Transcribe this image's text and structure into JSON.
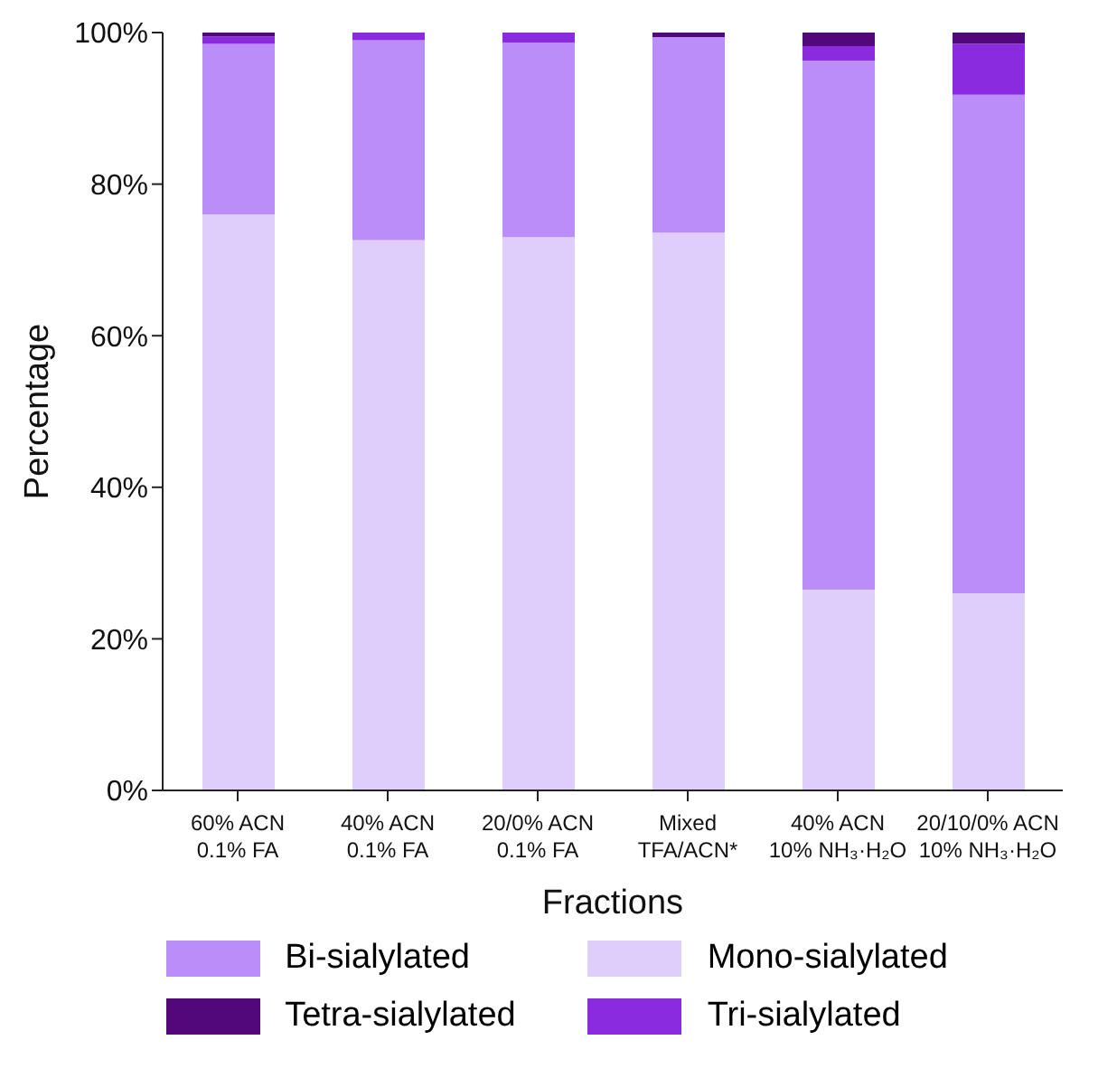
{
  "chart_data": {
    "type": "bar",
    "stacked": true,
    "xlabel": "Fractions",
    "ylabel": "Percentage",
    "categories": [
      "60% ACN\n0.1% FA",
      "40% ACN\n0.1% FA",
      "20/0% ACN\n0.1% FA",
      "Mixed\nTFA/ACN*",
      "40% ACN\n10% NH₃·H₂O",
      "20/10/0% ACN\n10% NH₃·H₂O"
    ],
    "series": [
      {
        "name": "Mono-sialylated",
        "color": "#dfcdfb",
        "values": [
          76,
          72.6,
          73,
          73.6,
          26.5,
          26
        ]
      },
      {
        "name": "Bi-sialylated",
        "color": "#bb8df9",
        "values": [
          22.5,
          26.4,
          25.7,
          25.8,
          69.8,
          65.8
        ]
      },
      {
        "name": "Tri-sialylated",
        "color": "#8a2be0",
        "values": [
          1,
          1,
          1.3,
          0,
          1.9,
          6.7
        ]
      },
      {
        "name": "Tetra-sialylated",
        "color": "#52087a",
        "values": [
          0.5,
          0,
          0,
          0.6,
          1.8,
          1.5
        ]
      }
    ],
    "ylim": [
      0,
      100
    ],
    "yticks": [
      {
        "value": 0,
        "label": "0%"
      },
      {
        "value": 20,
        "label": "20%"
      },
      {
        "value": 40,
        "label": "40%"
      },
      {
        "value": 60,
        "label": "60%"
      },
      {
        "value": 80,
        "label": "80%"
      },
      {
        "value": 100,
        "label": "100%"
      }
    ],
    "grid": false,
    "legend": "bottom"
  }
}
